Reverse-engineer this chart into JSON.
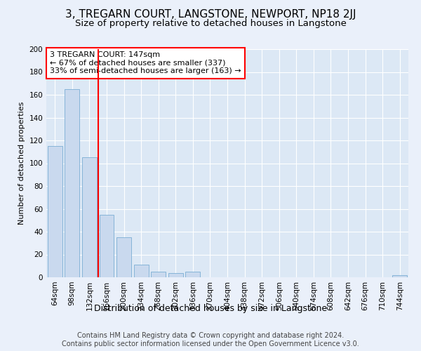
{
  "title": "3, TREGARN COURT, LANGSTONE, NEWPORT, NP18 2JJ",
  "subtitle": "Size of property relative to detached houses in Langstone",
  "xlabel": "Distribution of detached houses by size in Langstone",
  "ylabel": "Number of detached properties",
  "footer_line1": "Contains HM Land Registry data © Crown copyright and database right 2024.",
  "footer_line2": "Contains public sector information licensed under the Open Government Licence v3.0.",
  "annotation_line1": "3 TREGARN COURT: 147sqm",
  "annotation_line2": "← 67% of detached houses are smaller (337)",
  "annotation_line3": "33% of semi-detached houses are larger (163) →",
  "bar_categories": [
    "64sqm",
    "98sqm",
    "132sqm",
    "166sqm",
    "200sqm",
    "234sqm",
    "268sqm",
    "302sqm",
    "336sqm",
    "370sqm",
    "404sqm",
    "438sqm",
    "472sqm",
    "506sqm",
    "540sqm",
    "574sqm",
    "608sqm",
    "642sqm",
    "676sqm",
    "710sqm",
    "744sqm"
  ],
  "bar_values": [
    115,
    165,
    105,
    55,
    35,
    11,
    5,
    4,
    5,
    0,
    0,
    0,
    0,
    0,
    0,
    0,
    0,
    0,
    0,
    0,
    2
  ],
  "bar_color": "#c9d9ee",
  "bar_edge_color": "#7aadd4",
  "red_line_x": 2.5,
  "ylim": [
    0,
    200
  ],
  "yticks": [
    0,
    20,
    40,
    60,
    80,
    100,
    120,
    140,
    160,
    180,
    200
  ],
  "bg_color": "#eaf0fa",
  "plot_bg_color": "#dce8f5",
  "grid_color": "#ffffff",
  "title_fontsize": 11,
  "subtitle_fontsize": 9.5,
  "ylabel_fontsize": 8,
  "xlabel_fontsize": 9,
  "tick_fontsize": 7.5,
  "annotation_fontsize": 8,
  "footer_fontsize": 7
}
